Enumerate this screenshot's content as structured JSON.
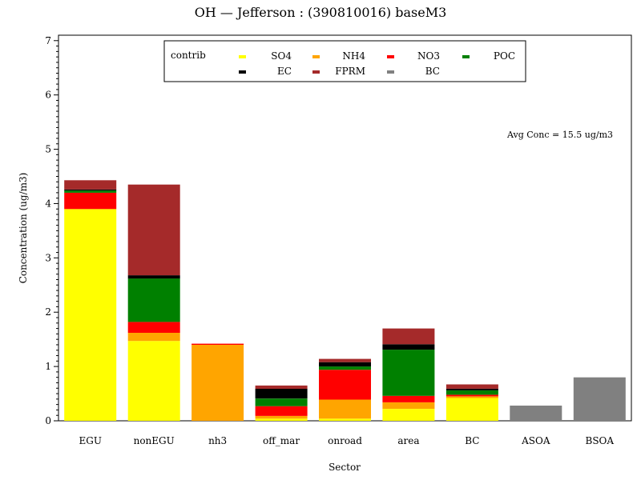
{
  "chart_data": {
    "type": "bar",
    "stacked": true,
    "title": "OH — Jefferson : (390810016) baseM3",
    "xlabel": "Sector",
    "ylabel": "Concentration (ug/m3)",
    "ylim": [
      0,
      7.1
    ],
    "yticks": [
      0,
      1,
      2,
      3,
      4,
      5,
      6,
      7
    ],
    "grid": false,
    "legend_title": "contrib",
    "legend_position": "top",
    "annotation": "Avg Conc =  15.5 ug/m3",
    "categories": [
      "EGU",
      "nonEGU",
      "nh3",
      "off_mar",
      "onroad",
      "area",
      "BC",
      "ASOA",
      "BSOA"
    ],
    "series": [
      {
        "name": "SO4",
        "color": "#ffff00",
        "values": [
          3.9,
          1.47,
          0.0,
          0.04,
          0.04,
          0.22,
          0.42,
          0.0,
          0.0
        ]
      },
      {
        "name": "NH4",
        "color": "#ffa500",
        "values": [
          0.0,
          0.15,
          1.4,
          0.05,
          0.35,
          0.12,
          0.03,
          0.0,
          0.0
        ]
      },
      {
        "name": "NO3",
        "color": "#ff0000",
        "values": [
          0.3,
          0.2,
          0.02,
          0.18,
          0.55,
          0.12,
          0.03,
          0.0,
          0.0
        ]
      },
      {
        "name": "POC",
        "color": "#008000",
        "values": [
          0.04,
          0.8,
          0.0,
          0.14,
          0.06,
          0.85,
          0.08,
          0.0,
          0.0
        ]
      },
      {
        "name": "EC",
        "color": "#000000",
        "values": [
          0.02,
          0.06,
          0.0,
          0.18,
          0.08,
          0.1,
          0.03,
          0.0,
          0.0
        ]
      },
      {
        "name": "FPRM",
        "color": "#a52a2a",
        "values": [
          0.17,
          1.67,
          0.0,
          0.06,
          0.06,
          0.29,
          0.08,
          0.0,
          0.0
        ]
      },
      {
        "name": "BC",
        "color": "#808080",
        "values": [
          0.0,
          0.0,
          0.0,
          0.0,
          0.0,
          0.0,
          0.0,
          0.28,
          0.8
        ]
      }
    ]
  }
}
